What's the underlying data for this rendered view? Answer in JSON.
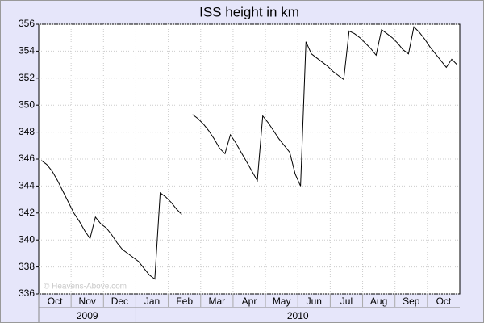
{
  "chart_data": {
    "type": "line",
    "title": "ISS height in km",
    "watermark": "© Heavens-Above.com",
    "categories": [
      "Oct",
      "Nov",
      "Dec",
      "Jan",
      "Feb",
      "Mar",
      "Apr",
      "May",
      "Jun",
      "Jul",
      "Aug",
      "Sep",
      "Oct"
    ],
    "x_groups": [
      {
        "label": "2009",
        "count": 3
      },
      {
        "label": "2010",
        "count": 10
      }
    ],
    "series": [
      {
        "name": "ISS height",
        "color": "#000000",
        "values": [
          [
            345.9,
            345.6,
            345.1,
            344.4,
            343.6,
            342.8
          ],
          [
            342.0,
            341.4,
            340.7,
            340.1,
            341.7,
            341.2
          ],
          [
            340.9,
            340.4,
            339.8,
            339.3,
            339.0,
            338.7
          ],
          [
            338.4,
            337.9,
            337.4,
            337.1,
            343.5,
            343.2
          ],
          [
            342.8,
            342.3,
            341.9,
            null,
            349.3,
            349.0
          ],
          [
            348.6,
            348.1,
            347.5,
            346.8,
            346.4,
            347.8
          ],
          [
            347.2,
            346.5,
            345.8,
            345.1,
            344.4,
            349.2
          ],
          [
            348.7,
            348.1,
            347.5,
            347.0,
            346.5,
            344.9
          ],
          [
            344.0,
            354.7,
            353.8,
            353.5,
            353.2,
            352.9
          ],
          [
            352.5,
            352.2,
            351.9,
            355.5,
            355.3,
            355.0
          ],
          [
            354.6,
            354.2,
            353.7,
            355.6,
            355.3,
            355.0
          ],
          [
            354.6,
            354.1,
            353.8,
            355.8,
            355.4,
            354.9
          ],
          [
            354.3,
            353.8,
            353.3,
            352.8,
            353.4,
            353.0
          ]
        ]
      }
    ],
    "ylim": [
      336,
      356
    ],
    "yticks": [
      336,
      338,
      340,
      342,
      344,
      346,
      348,
      350,
      352,
      354,
      356
    ],
    "grid": true
  }
}
